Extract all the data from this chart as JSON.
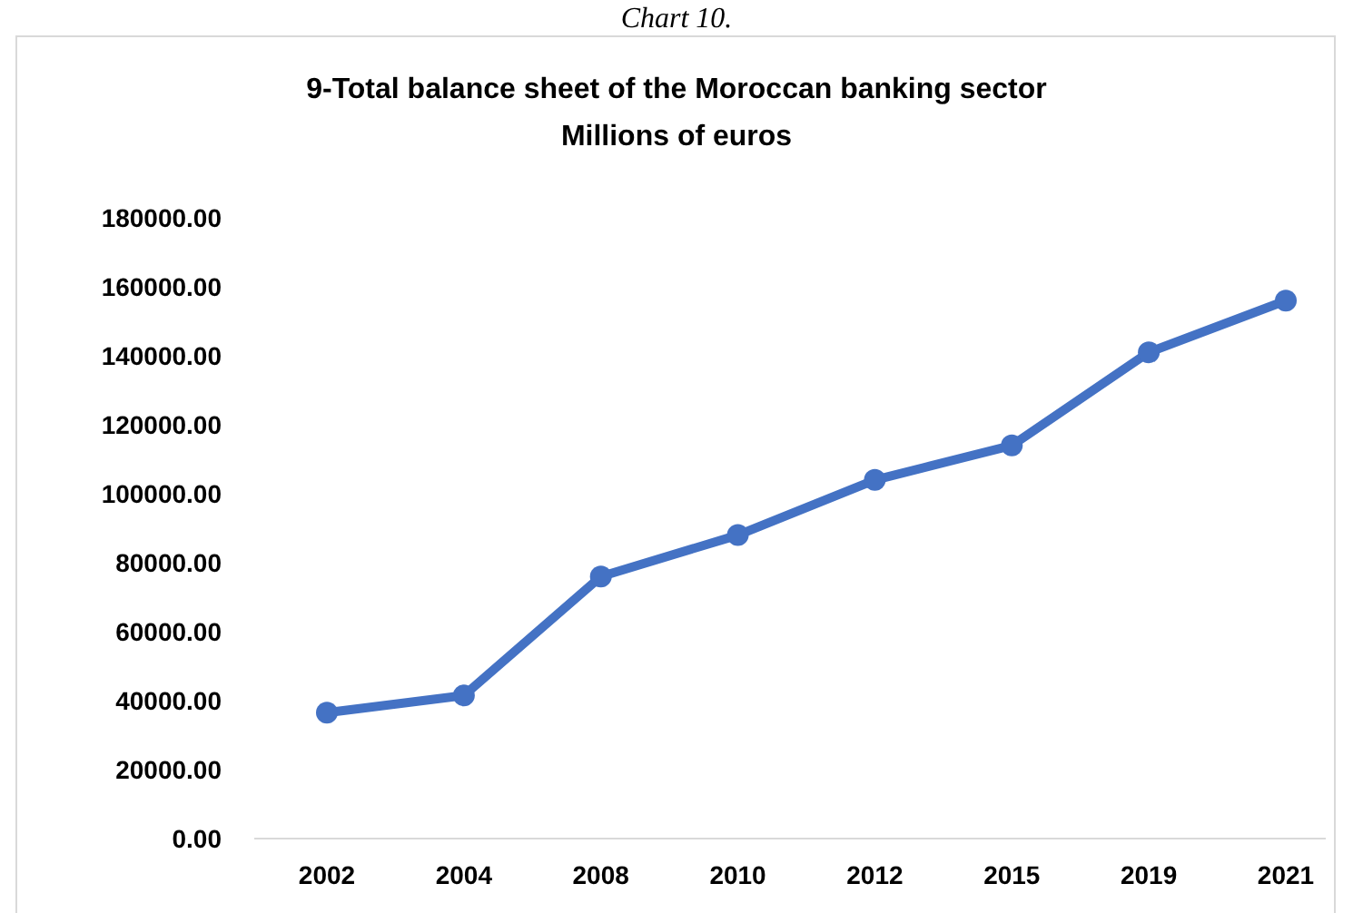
{
  "chart_data": {
    "type": "line",
    "title": "9-Total balance sheet of the Moroccan banking sector",
    "subtitle": "Millions of euros",
    "annotations": [
      "Chart 10."
    ],
    "categories": [
      "2002",
      "2004",
      "2008",
      "2010",
      "2012",
      "2015",
      "2019",
      "2021"
    ],
    "series": [
      {
        "color": "#4472c4",
        "values": [
          36500,
          41500,
          76000,
          88000,
          104000,
          114000,
          141000,
          156000
        ]
      }
    ],
    "ylim": [
      0,
      180000
    ],
    "yticks": [
      {
        "value": 0,
        "label": "0.00"
      },
      {
        "value": 20000,
        "label": "20000.00"
      },
      {
        "value": 40000,
        "label": "40000.00"
      },
      {
        "value": 60000,
        "label": "60000.00"
      },
      {
        "value": 80000,
        "label": "80000.00"
      },
      {
        "value": 100000,
        "label": "100000.00"
      },
      {
        "value": 120000,
        "label": "120000.00"
      },
      {
        "value": 140000,
        "label": "140000.00"
      },
      {
        "value": 160000,
        "label": "160000.00"
      },
      {
        "value": 180000,
        "label": "180000.00"
      }
    ],
    "grid": false,
    "marker": "circle",
    "line_style": "solid"
  }
}
